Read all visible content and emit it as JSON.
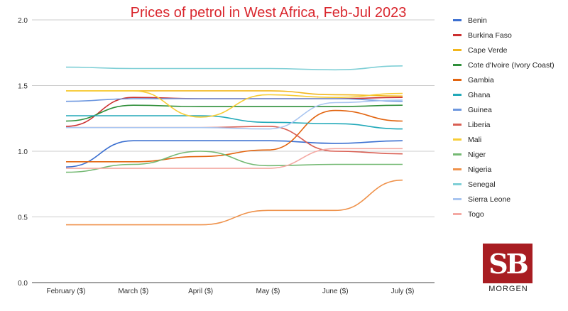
{
  "chart_data": {
    "type": "line",
    "title": "Prices of petrol in West Africa, Feb-Jul 2023",
    "categories": [
      "February ($)",
      "March ($)",
      "April ($)",
      "May ($)",
      "June ($)",
      "July ($)"
    ],
    "ylim": [
      0,
      2.0
    ],
    "yticks": [
      "0.0",
      "0.5",
      "1.0",
      "1.5",
      "2.0"
    ],
    "ytick_values": [
      0,
      0.5,
      1.0,
      1.5,
      2.0
    ],
    "grid": true,
    "legend_position": "right",
    "series": [
      {
        "name": "Benin",
        "color": "#3b6fd0",
        "values": [
          0.88,
          1.08,
          1.08,
          1.08,
          1.06,
          1.08
        ]
      },
      {
        "name": "Burkina Faso",
        "color": "#cc2f2f",
        "values": [
          1.19,
          1.41,
          1.4,
          1.4,
          1.4,
          1.41
        ]
      },
      {
        "name": "Cape Verde",
        "color": "#f2b61c",
        "values": [
          1.46,
          1.46,
          1.46,
          1.46,
          1.43,
          1.42
        ]
      },
      {
        "name": "Cote d'Ivoire (Ivory Coast)",
        "color": "#2f8f3a",
        "values": [
          1.23,
          1.35,
          1.34,
          1.34,
          1.34,
          1.35
        ]
      },
      {
        "name": "Gambia",
        "color": "#e2640f",
        "values": [
          0.92,
          0.92,
          0.96,
          1.01,
          1.31,
          1.23
        ]
      },
      {
        "name": "Ghana",
        "color": "#22a9b9",
        "values": [
          1.27,
          1.27,
          1.27,
          1.22,
          1.21,
          1.17
        ]
      },
      {
        "name": "Guinea",
        "color": "#6d97df",
        "values": [
          1.38,
          1.4,
          1.4,
          1.4,
          1.4,
          1.38
        ]
      },
      {
        "name": "Liberia",
        "color": "#d95f53",
        "values": [
          1.18,
          1.18,
          1.18,
          1.19,
          1.0,
          0.98
        ]
      },
      {
        "name": "Mali",
        "color": "#f7cd36",
        "values": [
          1.46,
          1.46,
          1.26,
          1.43,
          1.41,
          1.44
        ]
      },
      {
        "name": "Niger",
        "color": "#74b973",
        "values": [
          0.84,
          0.9,
          1.0,
          0.89,
          0.9,
          0.9
        ]
      },
      {
        "name": "Nigeria",
        "color": "#ef924b",
        "values": [
          0.44,
          0.44,
          0.44,
          0.55,
          0.55,
          0.78
        ]
      },
      {
        "name": "Senegal",
        "color": "#7fcfd6",
        "values": [
          1.64,
          1.63,
          1.63,
          1.63,
          1.62,
          1.65
        ]
      },
      {
        "name": "Sierra Leone",
        "color": "#a9c5f0",
        "values": [
          1.18,
          1.18,
          1.18,
          1.17,
          1.37,
          1.39
        ]
      },
      {
        "name": "Togo",
        "color": "#f4a9a3",
        "values": [
          0.87,
          0.87,
          0.87,
          0.87,
          1.02,
          1.02
        ]
      }
    ]
  },
  "logo": {
    "monogram": "SB",
    "word": "MORGEN",
    "color": "#a81d22"
  }
}
